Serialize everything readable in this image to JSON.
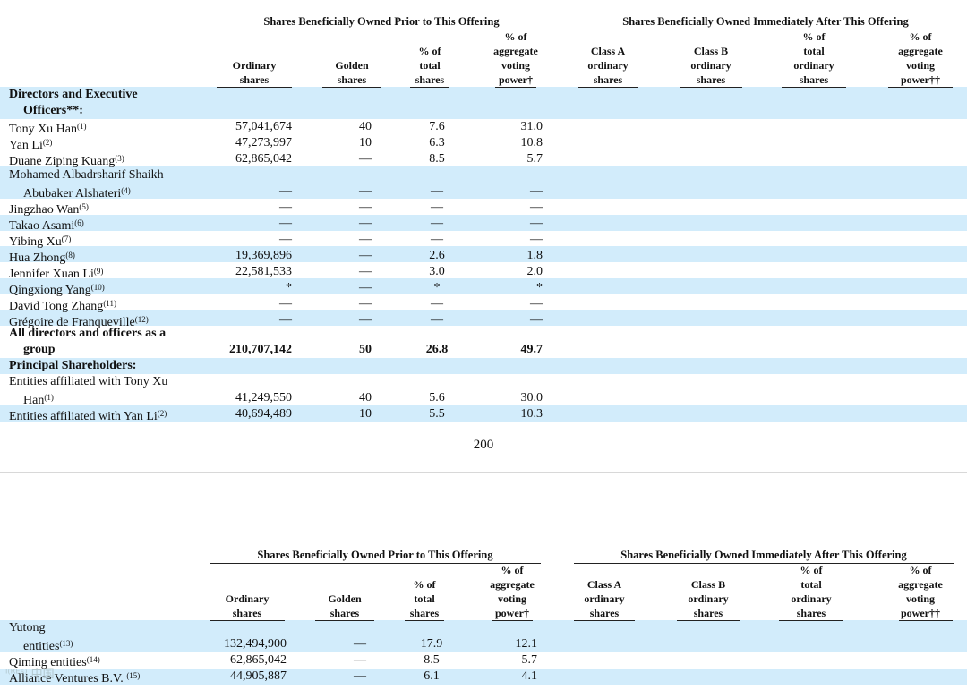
{
  "headers": {
    "prior_group": "Shares Beneficially Owned Prior to This Offering",
    "after_group": "Shares Beneficially Owned Immediately After This Offering",
    "cols": [
      "Ordinary\nshares",
      "Golden\nshares",
      "% of\ntotal\nshares",
      "% of\naggregate\nvoting\npower†",
      "Class A\nordinary\nshares",
      "Class B\nordinary\nshares",
      "% of\ntotal\nordinary\nshares",
      "% of\naggregate\nvoting\npower††"
    ]
  },
  "page1": {
    "section_directors": [
      "Directors and Executive",
      "Officers**:"
    ],
    "rows": [
      {
        "name": "Tony Xu Han",
        "fn": "(1)",
        "ord": "57,041,674",
        "golden": "40",
        "pct": "7.6",
        "vote": "31.0"
      },
      {
        "name": "Yan Li",
        "fn": "(2)",
        "ord": "47,273,997",
        "golden": "10",
        "pct": "6.3",
        "vote": "10.8"
      },
      {
        "name": "Duane Ziping Kuang",
        "fn": "(3)",
        "ord": "62,865,042",
        "golden": "—",
        "pct": "8.5",
        "vote": "5.7"
      },
      {
        "name": "Mohamed Albadrsharif Shaikh",
        "name2": "Abubaker Alshateri",
        "fn": "(4)",
        "ord": "—",
        "golden": "—",
        "pct": "—",
        "vote": "—"
      },
      {
        "name": "Jingzhao Wan",
        "fn": "(5)",
        "ord": "—",
        "golden": "—",
        "pct": "—",
        "vote": "—"
      },
      {
        "name": "Takao Asami",
        "fn": "(6)",
        "ord": "—",
        "golden": "—",
        "pct": "—",
        "vote": "—"
      },
      {
        "name": "Yibing Xu",
        "fn": "(7)",
        "ord": "—",
        "golden": "—",
        "pct": "—",
        "vote": "—"
      },
      {
        "name": "Hua Zhong",
        "fn": "(8)",
        "ord": "19,369,896",
        "golden": "—",
        "pct": "2.6",
        "vote": "1.8"
      },
      {
        "name": "Jennifer Xuan Li",
        "fn": "(9)",
        "ord": "22,581,533",
        "golden": "—",
        "pct": "3.0",
        "vote": "2.0"
      },
      {
        "name": "Qingxiong Yang",
        "fn": "(10)",
        "ord": "*",
        "golden": "—",
        "pct": "*",
        "vote": "*"
      },
      {
        "name": "David Tong Zhang",
        "fn": "(11)",
        "ord": "—",
        "golden": "—",
        "pct": "—",
        "vote": "—"
      },
      {
        "name": "Grégoire de Franqueville",
        "fn": "(12)",
        "ord": "—",
        "golden": "—",
        "pct": "—",
        "vote": "—"
      }
    ],
    "all_group": {
      "name": "All directors and officers as a",
      "name2": "group",
      "ord": "210,707,142",
      "golden": "50",
      "pct": "26.8",
      "vote": "49.7"
    },
    "section_principal": "Principal Shareholders:",
    "principal_rows": [
      {
        "name": "Entities affiliated with Tony Xu",
        "name2": "Han",
        "fn": "(1)",
        "ord": "41,249,550",
        "golden": "40",
        "pct": "5.6",
        "vote": "30.0"
      },
      {
        "name": "Entities affiliated with Yan Li",
        "fn": "(2)",
        "ord": "40,694,489",
        "golden": "10",
        "pct": "5.5",
        "vote": "10.3"
      }
    ],
    "page_number": "200"
  },
  "page2": {
    "rows": [
      {
        "name": "Yutong",
        "name2": "entities",
        "fn": "(13)",
        "ord": "132,494,900",
        "golden": "—",
        "pct": "17.9",
        "vote": "12.1"
      },
      {
        "name": "Qiming entities",
        "fn": "(14)",
        "ord": "62,865,042",
        "golden": "—",
        "pct": "8.5",
        "vote": "5.7"
      },
      {
        "name": "Alliance Ventures B.V. ",
        "fn": "(15)",
        "ord": "44,905,887",
        "golden": "—",
        "pct": "6.1",
        "vote": "4.1"
      }
    ]
  }
}
